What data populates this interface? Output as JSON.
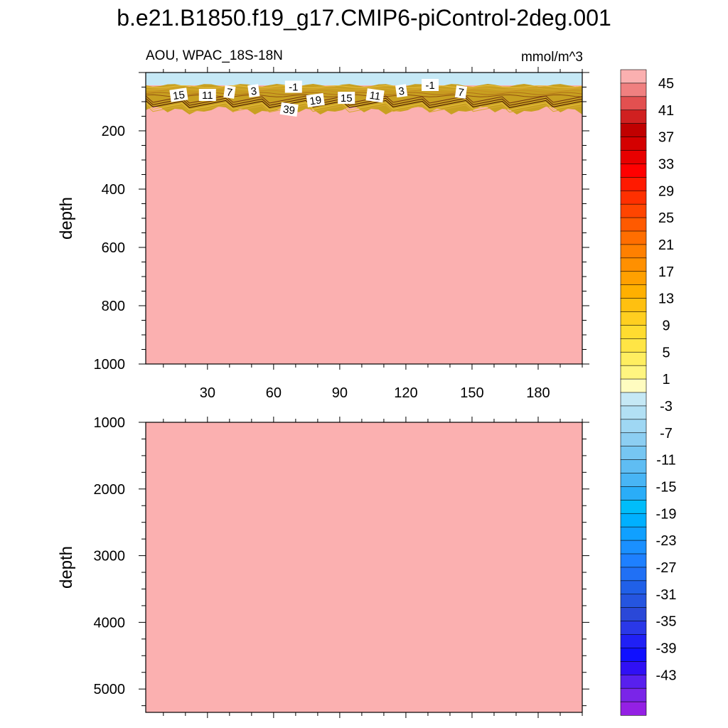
{
  "title": "b.e21.B1850.f19_g17.CMIP6-piControl-2deg.001",
  "chart_data": [
    {
      "type": "heatmap",
      "subtitle_left": "AOU, WPAC_18S-18N",
      "subtitle_right": "mmol/m^3",
      "ylabel": "depth",
      "xlim": [
        2,
        200
      ],
      "ylim": [
        1000,
        0
      ],
      "x_ticks": [
        30,
        60,
        90,
        120,
        150,
        180
      ],
      "y_ticks": [
        200,
        400,
        600,
        800,
        1000
      ],
      "layers": [
        {
          "value": -3,
          "top": 0,
          "bottom": 40,
          "color": "#c5e8f5"
        },
        {
          "value": 47,
          "top": 130,
          "bottom": 1000,
          "color": "#fbb0b0"
        }
      ],
      "contour_labels": [
        {
          "text": "15",
          "x": 17,
          "y": 78
        },
        {
          "text": "11",
          "x": 30,
          "y": 78
        },
        {
          "text": "7",
          "x": 40,
          "y": 68
        },
        {
          "text": "3",
          "x": 51,
          "y": 64
        },
        {
          "text": "-1",
          "x": 69,
          "y": 50
        },
        {
          "text": "39",
          "x": 67,
          "y": 128
        },
        {
          "text": "19",
          "x": 79,
          "y": 96
        },
        {
          "text": "15",
          "x": 93,
          "y": 88
        },
        {
          "text": "11",
          "x": 106,
          "y": 80
        },
        {
          "text": "3",
          "x": 118,
          "y": 64
        },
        {
          "text": "-1",
          "x": 131,
          "y": 44
        },
        {
          "text": "7",
          "x": 145,
          "y": 68
        }
      ]
    },
    {
      "type": "heatmap",
      "ylabel": "depth",
      "xlim": [
        2,
        200
      ],
      "ylim": [
        5350,
        1000
      ],
      "y_ticks": [
        1000,
        2000,
        3000,
        4000,
        5000
      ],
      "fill_color": "#fbb0b0"
    }
  ],
  "colorbar": {
    "levels": [
      -47,
      -45,
      -43,
      -41,
      -39,
      -37,
      -35,
      -33,
      -31,
      -29,
      -27,
      -25,
      -23,
      -21,
      -19,
      -17,
      -15,
      -13,
      -11,
      -9,
      -7,
      -5,
      -3,
      -1,
      1,
      3,
      5,
      7,
      9,
      11,
      13,
      15,
      17,
      19,
      21,
      23,
      25,
      27,
      29,
      31,
      33,
      35,
      37,
      39,
      41,
      43,
      45,
      47
    ],
    "labels": [
      "45",
      "41",
      "37",
      "33",
      "29",
      "25",
      "21",
      "17",
      "13",
      "9",
      "5",
      "1",
      "-3",
      "-7",
      "-11",
      "-15",
      "-19",
      "-23",
      "-27",
      "-31",
      "-35",
      "-39",
      "-43"
    ],
    "colors": [
      "#fbb0b0",
      "#f08080",
      "#e25050",
      "#d02020",
      "#c00000",
      "#d40000",
      "#e80000",
      "#ff0000",
      "#ff1a00",
      "#ff3000",
      "#ff4500",
      "#ff5a00",
      "#ff6e00",
      "#ff8000",
      "#ff9000",
      "#ffa000",
      "#ffb000",
      "#ffc010",
      "#ffcf20",
      "#ffdc30",
      "#ffe545",
      "#ffee60",
      "#fff580",
      "#fffcc0",
      "#c5e8f5",
      "#b2e0f4",
      "#9fd7f3",
      "#8ccef2",
      "#76c6f2",
      "#5fbdf3",
      "#48b5f5",
      "#2aadf8",
      "#00bdfa",
      "#00b0ff",
      "#10a0ff",
      "#1a90ff",
      "#1e80ff",
      "#2070f5",
      "#2060e8",
      "#2555e0",
      "#2a48d8",
      "#2a38e8",
      "#2020f5",
      "#1010ff",
      "#3010f5",
      "#5820ee",
      "#7a25e8",
      "#9420e4"
    ]
  }
}
